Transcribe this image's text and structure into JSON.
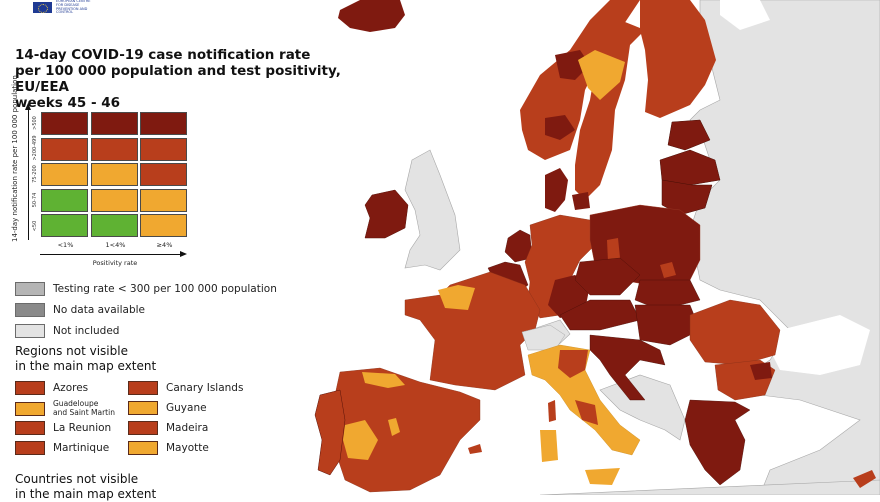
{
  "header": {
    "logo_icon": "eu-flag-icon",
    "organization": "European Centre for Disease Prevention and Control",
    "title": "14-day COVID-19 case notification rate\nper 100 000 population and test positivity, EU/EEA\nweeks 45 - 46"
  },
  "colors": {
    "dark_red": "#7f1a10",
    "red": "#b83e1c",
    "orange": "#f0a830",
    "green": "#5fb233",
    "testing_low": "#b5b5b5",
    "no_data": "#8a8a8a",
    "not_included": "#e3e3e3",
    "sea": "#ffffff"
  },
  "legend_matrix": {
    "y_axis_label": "14-day notification rate per 100 000 population",
    "x_axis_label": "Positivity rate",
    "y_ticks": [
      ">500",
      ">200-499",
      "75-200",
      "50-74",
      "<50"
    ],
    "x_ticks": [
      "<1%",
      "1<4%",
      "≥4%"
    ],
    "cells": [
      [
        "#7f1a10",
        "#7f1a10",
        "#7f1a10"
      ],
      [
        "#b83e1c",
        "#b83e1c",
        "#b83e1c"
      ],
      [
        "#f0a830",
        "#f0a830",
        "#b83e1c"
      ],
      [
        "#5fb233",
        "#f0a830",
        "#f0a830"
      ],
      [
        "#5fb233",
        "#5fb233",
        "#f0a830"
      ]
    ]
  },
  "legend_other": [
    {
      "label": "Testing rate < 300 per 100 000 population",
      "color": "#b5b5b5"
    },
    {
      "label": "No data available",
      "color": "#8a8a8a"
    },
    {
      "label": "Not included",
      "color": "#e3e3e3"
    }
  ],
  "regions_section": {
    "title": "Regions not visible\nin the main map extent",
    "items": [
      {
        "label": "Azores",
        "color": "#b83e1c"
      },
      {
        "label": "Canary Islands",
        "color": "#b83e1c"
      },
      {
        "label": "Guadeloupe\nand Saint Martin",
        "color": "#f0a830"
      },
      {
        "label": "Guyane",
        "color": "#f0a830"
      },
      {
        "label": "La Reunion",
        "color": "#b83e1c"
      },
      {
        "label": "Madeira",
        "color": "#b83e1c"
      },
      {
        "label": "Martinique",
        "color": "#b83e1c"
      },
      {
        "label": "Mayotte",
        "color": "#f0a830"
      }
    ]
  },
  "countries_section": {
    "title": "Countries not visible\nin the main map extent"
  },
  "map": {
    "country_status": [
      {
        "name": "Iceland",
        "color": "#7f1a10"
      },
      {
        "name": "Ireland",
        "color": "#7f1a10"
      },
      {
        "name": "Norway",
        "color": "#b83e1c"
      },
      {
        "name": "Sweden",
        "color": "#b83e1c"
      },
      {
        "name": "Finland",
        "color": "#b83e1c"
      },
      {
        "name": "Estonia",
        "color": "#7f1a10"
      },
      {
        "name": "Latvia",
        "color": "#7f1a10"
      },
      {
        "name": "Lithuania",
        "color": "#7f1a10"
      },
      {
        "name": "Denmark",
        "color": "#7f1a10"
      },
      {
        "name": "Netherlands",
        "color": "#7f1a10"
      },
      {
        "name": "Belgium",
        "color": "#7f1a10"
      },
      {
        "name": "Germany",
        "color": "#b83e1c"
      },
      {
        "name": "Poland",
        "color": "#7f1a10"
      },
      {
        "name": "Czechia",
        "color": "#7f1a10"
      },
      {
        "name": "Slovakia",
        "color": "#7f1a10"
      },
      {
        "name": "Austria",
        "color": "#7f1a10"
      },
      {
        "name": "Hungary",
        "color": "#7f1a10"
      },
      {
        "name": "Slovenia",
        "color": "#7f1a10"
      },
      {
        "name": "Croatia",
        "color": "#7f1a10"
      },
      {
        "name": "France",
        "color": "#b83e1c"
      },
      {
        "name": "Spain",
        "color": "#b83e1c"
      },
      {
        "name": "Portugal",
        "color": "#b83e1c"
      },
      {
        "name": "Italy",
        "color": "#f0a830"
      },
      {
        "name": "Romania",
        "color": "#b83e1c"
      },
      {
        "name": "Bulgaria",
        "color": "#b83e1c"
      },
      {
        "name": "Greece",
        "color": "#7f1a10"
      },
      {
        "name": "Cyprus",
        "color": "#b83e1c"
      },
      {
        "name": "United Kingdom",
        "color": "#e3e3e3"
      },
      {
        "name": "Switzerland",
        "color": "#e3e3e3"
      }
    ]
  }
}
